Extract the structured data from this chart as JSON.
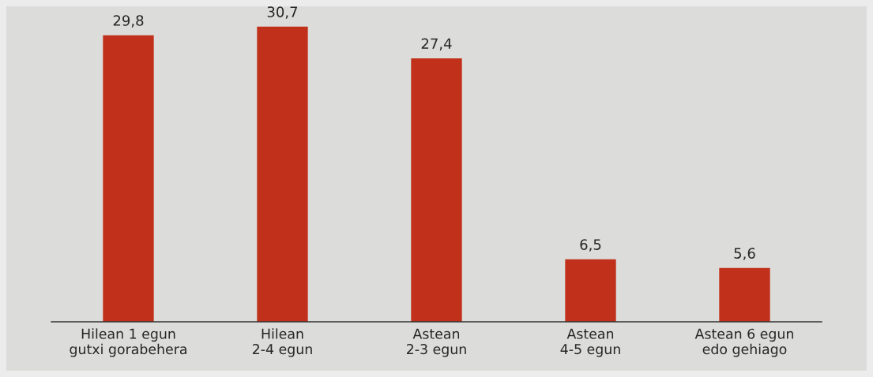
{
  "chart_data": {
    "type": "bar",
    "categories": [
      "Hilean 1 egun\ngutxi gorabehera",
      "Hilean\n2-4 egun",
      "Astean\n2-3 egun",
      "Astean\n4-5 egun",
      "Astean 6 egun\nedo gehiago"
    ],
    "values": [
      29.8,
      30.7,
      27.4,
      6.5,
      5.6
    ],
    "value_labels": [
      "29,8",
      "30,7",
      "27,4",
      "6,5",
      "5,6"
    ],
    "color": "#c0301a",
    "grid": false,
    "legend": false
  }
}
